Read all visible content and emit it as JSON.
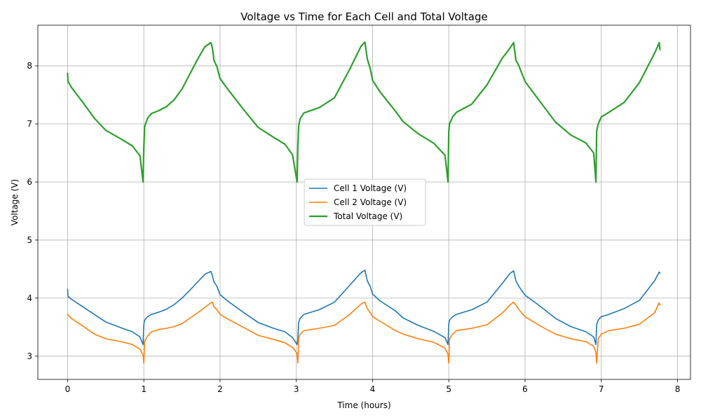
{
  "chart_data": {
    "type": "line",
    "title": "Voltage vs Time for Each Cell and Total Voltage",
    "xlabel": "Time (hours)",
    "ylabel": "Voltage (V)",
    "xlim": [
      -0.39,
      8.17
    ],
    "ylim": [
      2.6,
      8.7
    ],
    "xticks": [
      0,
      1,
      2,
      3,
      4,
      5,
      6,
      7,
      8
    ],
    "yticks": [
      3,
      4,
      5,
      6,
      7,
      8
    ],
    "grid": true,
    "legend": "center",
    "series": [
      {
        "name": "Cell 1 Voltage (V)",
        "color": "#1f77b4",
        "x": [
          0.0,
          0.005,
          0.05,
          0.2,
          0.35,
          0.5,
          0.7,
          0.85,
          0.95,
          0.99,
          1.0,
          1.01,
          1.05,
          1.1,
          1.2,
          1.3,
          1.4,
          1.5,
          1.6,
          1.7,
          1.8,
          1.88,
          1.9,
          1.92,
          1.96,
          2.0,
          2.1,
          2.3,
          2.5,
          2.7,
          2.85,
          2.95,
          3.01,
          3.02,
          3.03,
          3.05,
          3.1,
          3.3,
          3.5,
          3.7,
          3.85,
          3.9,
          3.93,
          3.97,
          4.0,
          4.1,
          4.3,
          4.4,
          4.6,
          4.8,
          4.95,
          4.99,
          5.0,
          5.01,
          5.05,
          5.1,
          5.3,
          5.5,
          5.7,
          5.8,
          5.85,
          5.88,
          5.92,
          6.0,
          6.2,
          6.4,
          6.6,
          6.8,
          6.9,
          6.93,
          6.94,
          6.96,
          7.0,
          7.1,
          7.3,
          7.5,
          7.7,
          7.76,
          7.77
        ],
        "values": [
          4.15,
          4.03,
          3.98,
          3.85,
          3.72,
          3.59,
          3.49,
          3.42,
          3.33,
          3.2,
          3.55,
          3.62,
          3.68,
          3.72,
          3.76,
          3.81,
          3.89,
          4.0,
          4.13,
          4.27,
          4.41,
          4.46,
          4.38,
          4.28,
          4.2,
          4.06,
          3.95,
          3.76,
          3.58,
          3.48,
          3.42,
          3.32,
          3.2,
          3.3,
          3.58,
          3.65,
          3.72,
          3.8,
          3.93,
          4.22,
          4.44,
          4.48,
          4.3,
          4.2,
          4.07,
          3.95,
          3.78,
          3.66,
          3.53,
          3.43,
          3.32,
          3.2,
          3.55,
          3.62,
          3.68,
          3.72,
          3.8,
          3.93,
          4.25,
          4.42,
          4.47,
          4.3,
          4.2,
          4.05,
          3.86,
          3.65,
          3.51,
          3.42,
          3.33,
          3.2,
          3.55,
          3.62,
          3.68,
          3.72,
          3.82,
          3.96,
          4.3,
          4.45,
          4.43
        ]
      },
      {
        "name": "Cell 2 Voltage (V)",
        "color": "#ff7f0e",
        "x": [
          0.0,
          0.05,
          0.2,
          0.35,
          0.5,
          0.7,
          0.85,
          0.95,
          0.99,
          1.0,
          1.01,
          1.05,
          1.1,
          1.2,
          1.3,
          1.4,
          1.5,
          1.6,
          1.7,
          1.8,
          1.88,
          1.9,
          1.92,
          1.96,
          2.0,
          2.1,
          2.3,
          2.5,
          2.7,
          2.85,
          2.95,
          3.01,
          3.02,
          3.03,
          3.05,
          3.1,
          3.3,
          3.5,
          3.7,
          3.85,
          3.9,
          3.93,
          3.97,
          4.0,
          4.1,
          4.3,
          4.4,
          4.6,
          4.8,
          4.95,
          4.99,
          5.0,
          5.01,
          5.05,
          5.1,
          5.3,
          5.5,
          5.7,
          5.8,
          5.85,
          5.88,
          5.92,
          6.0,
          6.2,
          6.4,
          6.6,
          6.8,
          6.9,
          6.93,
          6.94,
          6.96,
          7.0,
          7.1,
          7.3,
          7.5,
          7.7,
          7.76,
          7.77
        ],
        "values": [
          3.72,
          3.65,
          3.52,
          3.38,
          3.3,
          3.25,
          3.2,
          3.12,
          3.02,
          2.88,
          3.25,
          3.35,
          3.42,
          3.46,
          3.48,
          3.51,
          3.56,
          3.65,
          3.74,
          3.84,
          3.92,
          3.93,
          3.85,
          3.8,
          3.72,
          3.64,
          3.5,
          3.36,
          3.29,
          3.23,
          3.15,
          3.05,
          2.88,
          3.3,
          3.38,
          3.44,
          3.48,
          3.53,
          3.72,
          3.9,
          3.93,
          3.82,
          3.75,
          3.68,
          3.6,
          3.44,
          3.38,
          3.3,
          3.24,
          3.14,
          3.03,
          2.88,
          3.3,
          3.38,
          3.44,
          3.48,
          3.54,
          3.74,
          3.88,
          3.93,
          3.88,
          3.8,
          3.68,
          3.52,
          3.38,
          3.3,
          3.25,
          3.17,
          3.07,
          2.88,
          3.3,
          3.38,
          3.44,
          3.48,
          3.55,
          3.75,
          3.92,
          3.88
        ]
      },
      {
        "name": "Total Voltage (V)",
        "color": "#2ca02c",
        "x": [
          0.0,
          0.005,
          0.05,
          0.2,
          0.35,
          0.5,
          0.7,
          0.85,
          0.95,
          0.99,
          1.0,
          1.01,
          1.05,
          1.1,
          1.2,
          1.3,
          1.4,
          1.5,
          1.6,
          1.7,
          1.8,
          1.88,
          1.9,
          1.92,
          1.96,
          2.0,
          2.1,
          2.3,
          2.5,
          2.7,
          2.85,
          2.95,
          3.01,
          3.02,
          3.03,
          3.05,
          3.1,
          3.3,
          3.5,
          3.7,
          3.85,
          3.9,
          3.93,
          3.97,
          4.0,
          4.1,
          4.3,
          4.4,
          4.6,
          4.8,
          4.95,
          4.99,
          5.0,
          5.01,
          5.05,
          5.1,
          5.3,
          5.5,
          5.7,
          5.8,
          5.85,
          5.88,
          5.92,
          6.0,
          6.2,
          6.4,
          6.6,
          6.8,
          6.9,
          6.93,
          6.94,
          6.96,
          7.0,
          7.1,
          7.3,
          7.5,
          7.7,
          7.76,
          7.77
        ],
        "values": [
          7.87,
          7.73,
          7.63,
          7.37,
          7.1,
          6.89,
          6.74,
          6.62,
          6.45,
          6.0,
          6.6,
          6.95,
          7.1,
          7.18,
          7.23,
          7.3,
          7.42,
          7.6,
          7.85,
          8.1,
          8.33,
          8.4,
          8.3,
          8.1,
          7.98,
          7.78,
          7.6,
          7.26,
          6.94,
          6.77,
          6.65,
          6.47,
          6.0,
          6.6,
          6.96,
          7.09,
          7.19,
          7.28,
          7.45,
          7.94,
          8.34,
          8.41,
          8.12,
          7.95,
          7.75,
          7.55,
          7.22,
          7.04,
          6.83,
          6.67,
          6.46,
          6.0,
          6.88,
          7.0,
          7.12,
          7.2,
          7.34,
          7.67,
          8.13,
          8.3,
          8.4,
          8.1,
          8.0,
          7.73,
          7.38,
          7.03,
          6.81,
          6.67,
          6.5,
          6.0,
          6.88,
          7.0,
          7.12,
          7.2,
          7.37,
          7.71,
          8.22,
          8.4,
          8.28
        ]
      }
    ]
  }
}
